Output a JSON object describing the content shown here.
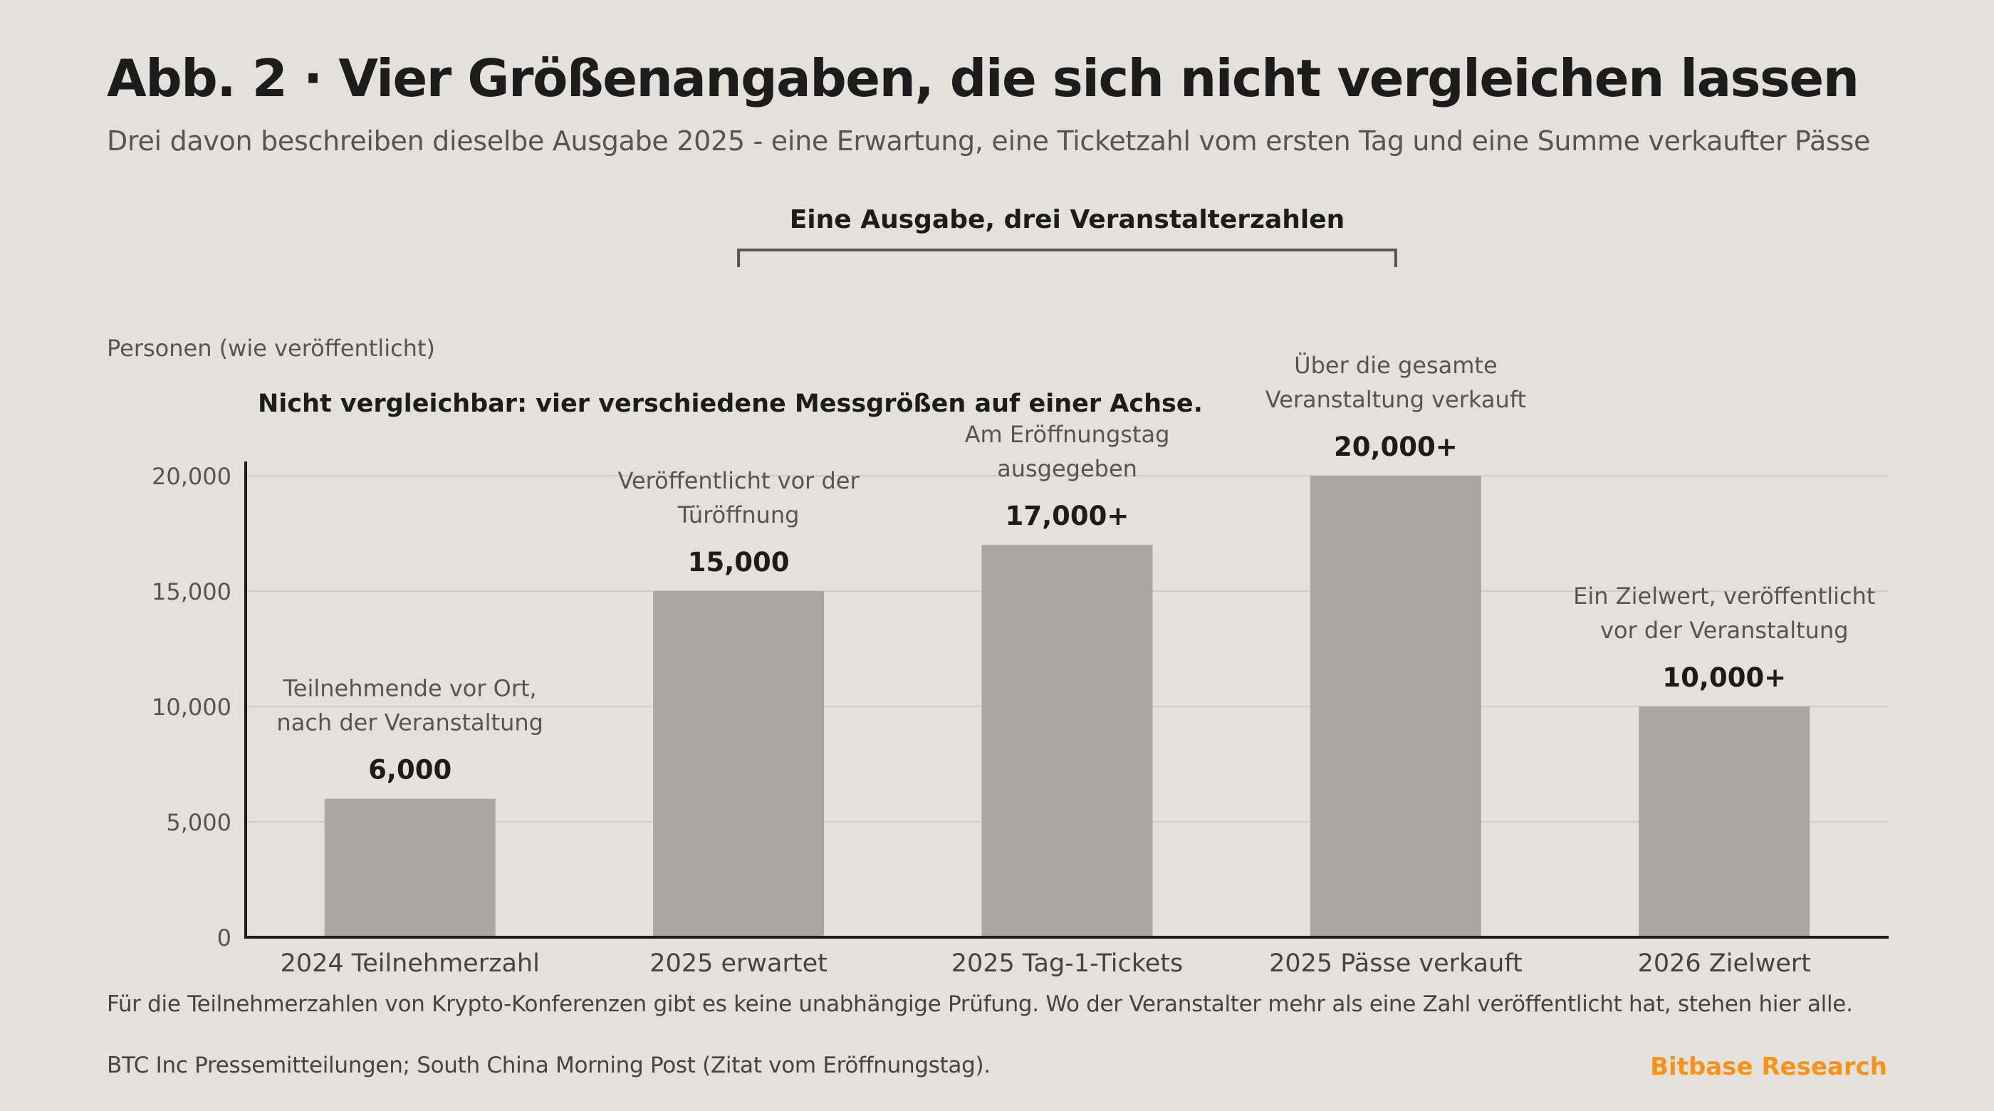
{
  "header": {
    "title": "Abb. 2 · Vier Größenangaben, die sich nicht vergleichen lassen",
    "subtitle": "Drei davon beschreiben dieselbe Ausgabe 2025 - eine Erwartung, eine Ticketzahl vom ersten Tag und eine Summe verkaufter Pässe"
  },
  "footer": {
    "note": "Für die Teilnehmerzahlen von Krypto-Konferenzen gibt es keine unabhängige Prüfung. Wo der Veranstalter mehr als eine Zahl veröffentlicht hat, stehen hier alle.",
    "source": "BTC Inc Pressemitteilungen; South China Morning Post (Zitat vom Eröffnungstag).",
    "brand": "Bitbase Research"
  },
  "colors": {
    "background": "#e4e0db",
    "bar": "#aaa6a0",
    "axis": "#1c1c1c",
    "grid": "#d2cdc7",
    "brand": "#f7931a"
  },
  "chart_data": {
    "type": "bar",
    "ylabel": "Personen (wie veröffentlicht)",
    "ylim": [
      0,
      20000
    ],
    "yticks": [
      0,
      5000,
      10000,
      15000,
      20000
    ],
    "ytick_labels": [
      "0",
      "5,000",
      "10,000",
      "15,000",
      "20,000"
    ],
    "grid": true,
    "categories": [
      "2024 Teilnehmerzahl",
      "2025 erwartet",
      "2025 Tag-1-Tickets",
      "2025 Pässe verkauft",
      "2026 Zielwert"
    ],
    "values": [
      6000,
      15000,
      17000,
      20000,
      10000
    ],
    "value_labels": [
      "6,000",
      "15,000",
      "17,000+",
      "20,000+",
      "10,000+"
    ],
    "bar_notes": [
      [
        "Teilnehmende vor Ort,",
        "nach der Veranstaltung"
      ],
      [
        "Veröffentlicht vor der",
        "Türöffnung"
      ],
      [
        "Am Eröffnungstag",
        "ausgegeben"
      ],
      [
        "Über die gesamte",
        "Veranstaltung verkauft"
      ],
      [
        "Ein Zielwert, veröffentlicht",
        "vor der Veranstaltung"
      ]
    ],
    "annotations": {
      "warning": "Nicht vergleichbar: vier verschiedene Messgrößen auf einer Achse.",
      "bracket_label": "Eine Ausgabe, drei Veranstalterzahlen",
      "bracket_categories": [
        1,
        3
      ]
    }
  }
}
